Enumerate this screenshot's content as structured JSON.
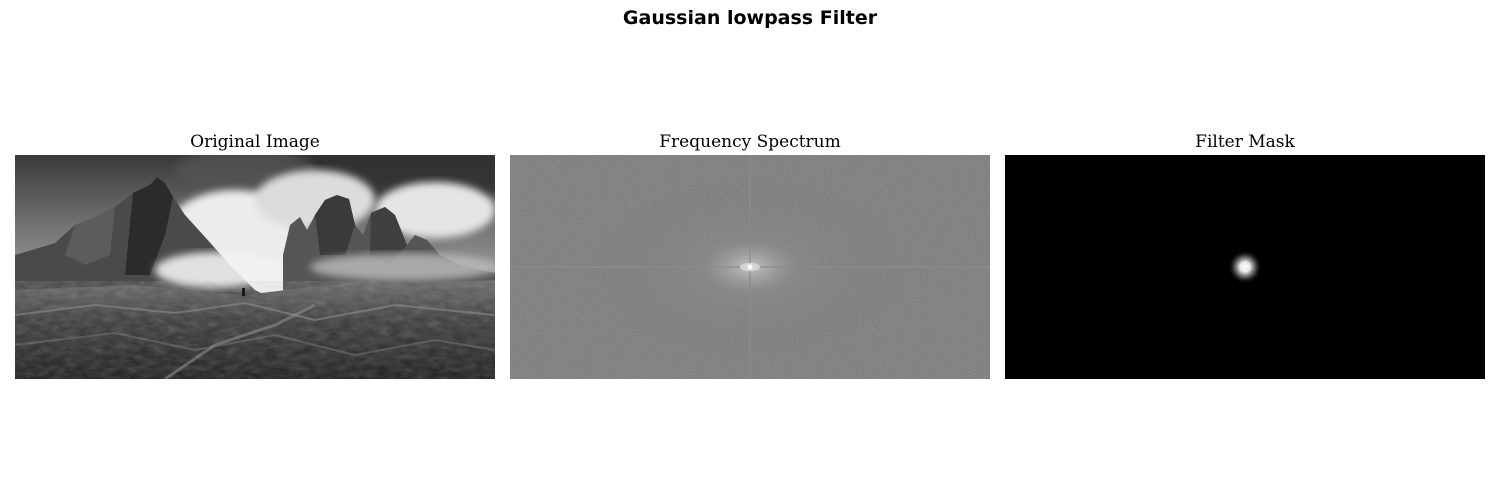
{
  "title": "Gaussian lowpass Filter",
  "panels": [
    {
      "title": "Original Image",
      "content": "grayscale mountain landscape with clouds"
    },
    {
      "title": "Frequency Spectrum",
      "content": "log-magnitude FFT spectrum"
    },
    {
      "title": "Filter Mask",
      "content": "gaussian lowpass mask"
    }
  ],
  "colors": {
    "background": "#ffffff",
    "mask_background": "#000000",
    "spectrum_gray": "#6b6b6b"
  }
}
